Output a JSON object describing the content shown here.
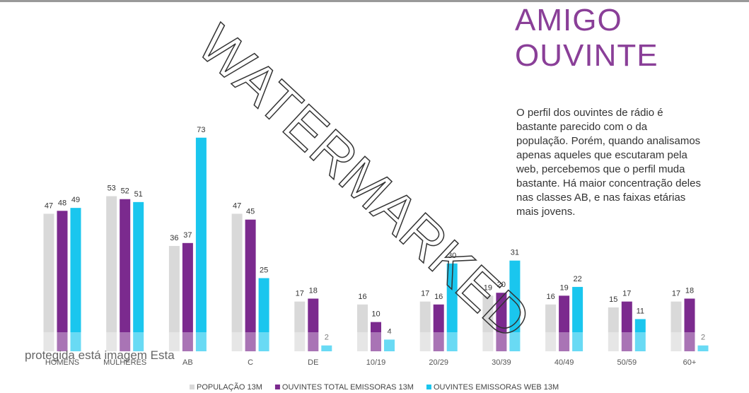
{
  "chart_data": {
    "type": "bar",
    "title_lines": [
      "AMIGO",
      "OUVINTE"
    ],
    "description_lines": [
      "O perfil dos ouvintes de rádio é",
      "bastante parecido com o da",
      "população. Porém, quando analisamos",
      "apenas aqueles que escutaram pela",
      "web, percebemos que o perfil muda",
      "bastante. Há maior concentração deles",
      "nas classes AB, e nas faixas etárias",
      "mais jovens."
    ],
    "categories": [
      "HOMENS",
      "MULHERES",
      "AB",
      "C",
      "DE",
      "10/19",
      "20/29",
      "30/39",
      "40/49",
      "50/59",
      "60+"
    ],
    "series": [
      {
        "name": "POPULAÇÃO 13M",
        "color": "#d9d9d9",
        "values": [
          47,
          53,
          36,
          47,
          17,
          16,
          17,
          19,
          16,
          15,
          17
        ]
      },
      {
        "name": "OUVINTES TOTAL EMISSORAS 13M",
        "color": "#7b2a8e",
        "values": [
          48,
          52,
          37,
          45,
          18,
          10,
          16,
          20,
          19,
          17,
          18
        ]
      },
      {
        "name": "OUVINTES EMISSORAS WEB 13M",
        "color": "#1ac6ee",
        "values": [
          49,
          51,
          73,
          25,
          2,
          4,
          30,
          31,
          22,
          11,
          2
        ]
      }
    ],
    "legend": "bottom",
    "overlay": {
      "watermark": "WATERMARKED",
      "caption": "protegida está imagem Esta"
    }
  }
}
